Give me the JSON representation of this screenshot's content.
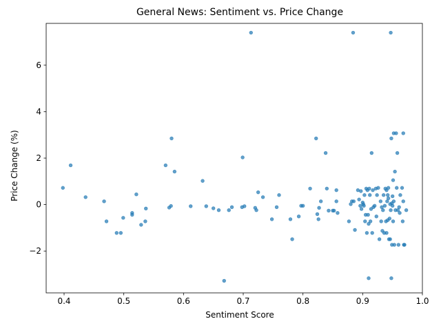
{
  "chart_data": {
    "type": "scatter",
    "title": "General News: Sentiment vs. Price Change",
    "xlabel": "Sentiment Score",
    "ylabel": "Price Change (%)",
    "xlim": [
      0.37,
      1.0
    ],
    "ylim": [
      -3.8,
      7.8
    ],
    "xticks": [
      0.4,
      0.5,
      0.6,
      0.7,
      0.8,
      0.9,
      1.0
    ],
    "xtick_labels": [
      "0.4",
      "0.5",
      "0.6",
      "0.7",
      "0.8",
      "0.9",
      "1.0"
    ],
    "yticks": [
      -2,
      0,
      2,
      4,
      6
    ],
    "ytick_labels": [
      "−2",
      "0",
      "2",
      "4",
      "6"
    ],
    "grid": false,
    "point_color": "#1f77b4",
    "point_alpha": 0.7,
    "points": [
      [
        0.398,
        0.72
      ],
      [
        0.411,
        1.69
      ],
      [
        0.436,
        0.32
      ],
      [
        0.467,
        0.14
      ],
      [
        0.471,
        -0.72
      ],
      [
        0.488,
        -1.22
      ],
      [
        0.495,
        -1.22
      ],
      [
        0.499,
        -0.57
      ],
      [
        0.514,
        -0.36
      ],
      [
        0.514,
        -0.44
      ],
      [
        0.521,
        0.44
      ],
      [
        0.529,
        -0.87
      ],
      [
        0.536,
        -0.72
      ],
      [
        0.537,
        -0.17
      ],
      [
        0.57,
        1.69
      ],
      [
        0.576,
        -0.13
      ],
      [
        0.579,
        -0.06
      ],
      [
        0.58,
        2.85
      ],
      [
        0.585,
        1.42
      ],
      [
        0.612,
        -0.07
      ],
      [
        0.632,
        1.02
      ],
      [
        0.638,
        -0.07
      ],
      [
        0.65,
        -0.16
      ],
      [
        0.659,
        -0.24
      ],
      [
        0.668,
        -3.28
      ],
      [
        0.676,
        -0.24
      ],
      [
        0.681,
        -0.11
      ],
      [
        0.698,
        -0.11
      ],
      [
        0.699,
        2.03
      ],
      [
        0.702,
        -0.07
      ],
      [
        0.713,
        7.4
      ],
      [
        0.72,
        -0.14
      ],
      [
        0.722,
        -0.24
      ],
      [
        0.725,
        0.53
      ],
      [
        0.733,
        0.32
      ],
      [
        0.748,
        -0.63
      ],
      [
        0.756,
        -0.11
      ],
      [
        0.76,
        0.41
      ],
      [
        0.779,
        -0.63
      ],
      [
        0.782,
        -1.49
      ],
      [
        0.793,
        -0.51
      ],
      [
        0.797,
        -0.05
      ],
      [
        0.8,
        -0.05
      ],
      [
        0.812,
        0.69
      ],
      [
        0.822,
        2.85
      ],
      [
        0.824,
        -0.41
      ],
      [
        0.826,
        -0.63
      ],
      [
        0.827,
        -0.14
      ],
      [
        0.83,
        0.14
      ],
      [
        0.838,
        2.22
      ],
      [
        0.84,
        0.69
      ],
      [
        0.843,
        -0.26
      ],
      [
        0.85,
        -0.26
      ],
      [
        0.852,
        -0.26
      ],
      [
        0.856,
        0.14
      ],
      [
        0.856,
        0.62
      ],
      [
        0.858,
        -0.36
      ],
      [
        0.877,
        -0.72
      ],
      [
        0.88,
        0.02
      ],
      [
        0.882,
        0.14
      ],
      [
        0.884,
        7.4
      ],
      [
        0.885,
        0.14
      ],
      [
        0.887,
        -1.09
      ],
      [
        0.892,
        0.62
      ],
      [
        0.894,
        0.22
      ],
      [
        0.896,
        -0.05
      ],
      [
        0.897,
        0.58
      ],
      [
        0.898,
        -0.19
      ],
      [
        0.9,
        0.09
      ],
      [
        0.901,
        0.02
      ],
      [
        0.902,
        -0.05
      ],
      [
        0.903,
        0.41
      ],
      [
        0.904,
        -0.72
      ],
      [
        0.905,
        -0.44
      ],
      [
        0.906,
        0.69
      ],
      [
        0.907,
        -1.22
      ],
      [
        0.908,
        0.62
      ],
      [
        0.909,
        -0.44
      ],
      [
        0.91,
        -3.17
      ],
      [
        0.91,
        -0.83
      ],
      [
        0.911,
        0.69
      ],
      [
        0.912,
        0.41
      ],
      [
        0.913,
        -0.72
      ],
      [
        0.914,
        -0.19
      ],
      [
        0.915,
        2.22
      ],
      [
        0.916,
        -1.22
      ],
      [
        0.917,
        0.62
      ],
      [
        0.918,
        -0.11
      ],
      [
        0.92,
        -0.05
      ],
      [
        0.922,
        0.69
      ],
      [
        0.923,
        -0.51
      ],
      [
        0.924,
        0.41
      ],
      [
        0.926,
        0.72
      ],
      [
        0.928,
        -1.49
      ],
      [
        0.93,
        0.14
      ],
      [
        0.931,
        -0.72
      ],
      [
        0.932,
        -0.11
      ],
      [
        0.933,
        -1.13
      ],
      [
        0.934,
        -0.24
      ],
      [
        0.935,
        0.41
      ],
      [
        0.936,
        -1.22
      ],
      [
        0.937,
        -0.05
      ],
      [
        0.938,
        0.69
      ],
      [
        0.939,
        -0.72
      ],
      [
        0.94,
        0.62
      ],
      [
        0.94,
        -1.22
      ],
      [
        0.941,
        0.14
      ],
      [
        0.942,
        0.41
      ],
      [
        0.942,
        -0.67
      ],
      [
        0.943,
        0.27
      ],
      [
        0.943,
        0.72
      ],
      [
        0.944,
        -1.49
      ],
      [
        0.945,
        -0.6
      ],
      [
        0.946,
        -1.49
      ],
      [
        0.946,
        0.02
      ],
      [
        0.947,
        7.4
      ],
      [
        0.947,
        -0.24
      ],
      [
        0.948,
        2.85
      ],
      [
        0.948,
        -3.17
      ],
      [
        0.949,
        -1.73
      ],
      [
        0.949,
        0.06
      ],
      [
        0.95,
        0.36
      ],
      [
        0.95,
        -0.05
      ],
      [
        0.951,
        1.05
      ],
      [
        0.951,
        -0.72
      ],
      [
        0.952,
        3.07
      ],
      [
        0.952,
        0.14
      ],
      [
        0.953,
        -1.73
      ],
      [
        0.954,
        1.42
      ],
      [
        0.955,
        -0.24
      ],
      [
        0.956,
        3.07
      ],
      [
        0.957,
        0.72
      ],
      [
        0.958,
        2.22
      ],
      [
        0.959,
        -0.24
      ],
      [
        0.96,
        -1.73
      ],
      [
        0.961,
        -0.11
      ],
      [
        0.962,
        -0.36
      ],
      [
        0.963,
        0.41
      ],
      [
        0.966,
        0.72
      ],
      [
        0.967,
        -0.72
      ],
      [
        0.968,
        3.07
      ],
      [
        0.968,
        0.14
      ],
      [
        0.969,
        -1.73
      ],
      [
        0.97,
        -1.73
      ],
      [
        0.973,
        -0.24
      ]
    ]
  }
}
